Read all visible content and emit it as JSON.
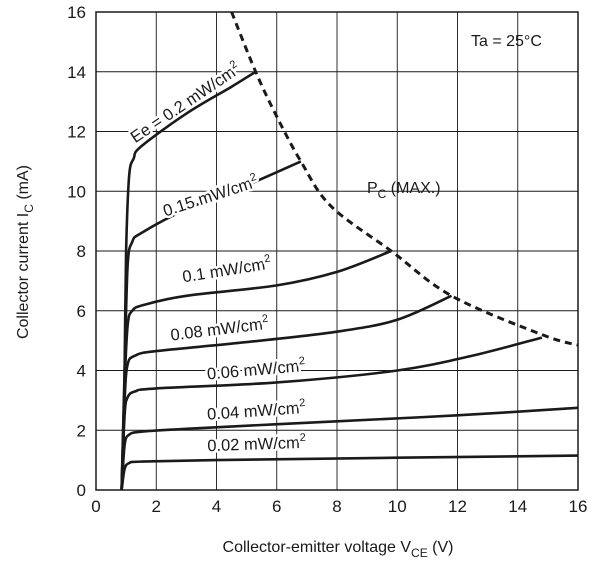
{
  "chart_data": {
    "type": "line",
    "title": "",
    "xlabel": "Collector-emitter voltage V",
    "xlabel_sub": "CE",
    "xlabel_unit": " (V)",
    "ylabel": "Collector current I",
    "ylabel_sub": "C",
    "ylabel_unit": " (mA)",
    "xlim": [
      0,
      16
    ],
    "ylim": [
      0,
      16
    ],
    "x_ticks": [
      "0",
      "2",
      "4",
      "6",
      "8",
      "10",
      "12",
      "14",
      "16"
    ],
    "y_ticks": [
      "0",
      "2",
      "4",
      "6",
      "8",
      "10",
      "12",
      "14",
      "16"
    ],
    "grid": true,
    "condition": "Ta = 25°C",
    "limit_label": "P",
    "limit_label_sub": "C",
    "limit_label_suffix": " (MAX.)",
    "limit_curve": {
      "style": "dashed",
      "points": [
        [
          4.5,
          16
        ],
        [
          5.3,
          14
        ],
        [
          6.0,
          12.5
        ],
        [
          6.8,
          11.0
        ],
        [
          7.8,
          9.5
        ],
        [
          9.8,
          8.0
        ],
        [
          11.8,
          6.5
        ],
        [
          14.8,
          5.2
        ],
        [
          16,
          4.85
        ]
      ]
    },
    "series": [
      {
        "name": "Ee = 0.2 mW/cm",
        "name_sup": "2",
        "points": [
          [
            0.85,
            0
          ],
          [
            0.9,
            0.8
          ],
          [
            0.95,
            4
          ],
          [
            1.0,
            8
          ],
          [
            1.1,
            10.5
          ],
          [
            1.25,
            11.1
          ],
          [
            1.5,
            11.5
          ],
          [
            3.0,
            12.6
          ],
          [
            4.5,
            13.5
          ],
          [
            5.3,
            14.0
          ]
        ]
      },
      {
        "name": "0.15 mW/cm",
        "name_sup": "2",
        "points": [
          [
            0.85,
            0
          ],
          [
            0.95,
            4
          ],
          [
            1.05,
            7.5
          ],
          [
            1.2,
            8.3
          ],
          [
            1.5,
            8.6
          ],
          [
            3.0,
            9.4
          ],
          [
            5.0,
            10.2
          ],
          [
            6.8,
            11.0
          ]
        ]
      },
      {
        "name": "0.1 mW/cm",
        "name_sup": "2",
        "points": [
          [
            0.85,
            0
          ],
          [
            0.95,
            3.5
          ],
          [
            1.05,
            5.5
          ],
          [
            1.2,
            6.0
          ],
          [
            1.6,
            6.2
          ],
          [
            3.0,
            6.5
          ],
          [
            6.0,
            6.85
          ],
          [
            8.0,
            7.3
          ],
          [
            9.8,
            8.0
          ]
        ]
      },
      {
        "name": "0.08 mW/cm",
        "name_sup": "2",
        "points": [
          [
            0.85,
            0
          ],
          [
            0.95,
            3.0
          ],
          [
            1.05,
            4.2
          ],
          [
            1.3,
            4.5
          ],
          [
            2.0,
            4.65
          ],
          [
            5.0,
            4.95
          ],
          [
            8.0,
            5.3
          ],
          [
            10.0,
            5.7
          ],
          [
            11.8,
            6.5
          ]
        ]
      },
      {
        "name": "0.06 mW/cm",
        "name_sup": "2",
        "points": [
          [
            0.85,
            0
          ],
          [
            0.95,
            2.5
          ],
          [
            1.05,
            3.1
          ],
          [
            1.3,
            3.3
          ],
          [
            2.0,
            3.4
          ],
          [
            6.0,
            3.6
          ],
          [
            10.0,
            4.0
          ],
          [
            12.5,
            4.5
          ],
          [
            14.8,
            5.1
          ]
        ]
      },
      {
        "name": "0.04 mW/cm",
        "name_sup": "2",
        "points": [
          [
            0.85,
            0
          ],
          [
            0.95,
            1.5
          ],
          [
            1.1,
            1.85
          ],
          [
            1.5,
            1.95
          ],
          [
            3.0,
            2.05
          ],
          [
            8.0,
            2.3
          ],
          [
            12.0,
            2.5
          ],
          [
            16.0,
            2.75
          ]
        ]
      },
      {
        "name": "0.02 mW/cm",
        "name_sup": "2",
        "points": [
          [
            0.85,
            0
          ],
          [
            0.95,
            0.7
          ],
          [
            1.1,
            0.9
          ],
          [
            1.5,
            0.95
          ],
          [
            4.0,
            1.0
          ],
          [
            10.0,
            1.08
          ],
          [
            16.0,
            1.15
          ]
        ]
      }
    ]
  }
}
